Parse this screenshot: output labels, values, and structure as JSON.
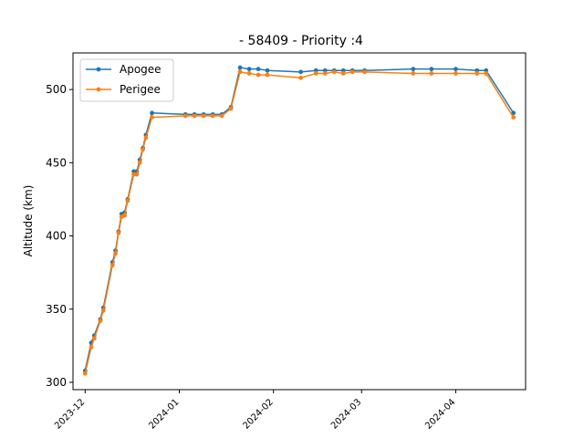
{
  "chart_data": {
    "type": "line",
    "title": "- 58409 - Priority :4",
    "xlabel": "",
    "ylabel": "Altitude (km)",
    "xlim": [
      "2023-11-27",
      "2024-04-24"
    ],
    "ylim": [
      295,
      525
    ],
    "xticks": [
      "2023-12",
      "2024-01",
      "2024-02",
      "2024-03",
      "2024-04"
    ],
    "xtick_dates": [
      "2023-12-01",
      "2024-01-01",
      "2024-02-01",
      "2024-03-01",
      "2024-04-01"
    ],
    "yticks": [
      300,
      350,
      400,
      450,
      500
    ],
    "grid": false,
    "legend_position": "top-left",
    "series": [
      {
        "name": "Apogee",
        "color": "#1f77b4",
        "points": [
          [
            "2023-12-01",
            308
          ],
          [
            "2023-12-03",
            327
          ],
          [
            "2023-12-04",
            332
          ],
          [
            "2023-12-06",
            343
          ],
          [
            "2023-12-07",
            351
          ],
          [
            "2023-12-10",
            382
          ],
          [
            "2023-12-11",
            390
          ],
          [
            "2023-12-12",
            403
          ],
          [
            "2023-12-13",
            415
          ],
          [
            "2023-12-14",
            416
          ],
          [
            "2023-12-15",
            425
          ],
          [
            "2023-12-17",
            444
          ],
          [
            "2023-12-18",
            444
          ],
          [
            "2023-12-19",
            452
          ],
          [
            "2023-12-20",
            460
          ],
          [
            "2023-12-21",
            469
          ],
          [
            "2023-12-23",
            484
          ],
          [
            "2024-01-03",
            483
          ],
          [
            "2024-01-06",
            483
          ],
          [
            "2024-01-09",
            483
          ],
          [
            "2024-01-12",
            483
          ],
          [
            "2024-01-15",
            483
          ],
          [
            "2024-01-18",
            488
          ],
          [
            "2024-01-21",
            515
          ],
          [
            "2024-01-24",
            514
          ],
          [
            "2024-01-27",
            514
          ],
          [
            "2024-01-30",
            513
          ],
          [
            "2024-02-10",
            512
          ],
          [
            "2024-02-15",
            513
          ],
          [
            "2024-02-18",
            513
          ],
          [
            "2024-02-21",
            513
          ],
          [
            "2024-02-24",
            513
          ],
          [
            "2024-02-27",
            513
          ],
          [
            "2024-03-02",
            513
          ],
          [
            "2024-03-18",
            514
          ],
          [
            "2024-03-24",
            514
          ],
          [
            "2024-04-01",
            514
          ],
          [
            "2024-04-08",
            513
          ],
          [
            "2024-04-11",
            513
          ],
          [
            "2024-04-20",
            484
          ]
        ]
      },
      {
        "name": "Perigee",
        "color": "#ff7f0e",
        "points": [
          [
            "2023-12-01",
            306
          ],
          [
            "2023-12-03",
            324
          ],
          [
            "2023-12-04",
            330
          ],
          [
            "2023-12-06",
            342
          ],
          [
            "2023-12-07",
            349
          ],
          [
            "2023-12-10",
            380
          ],
          [
            "2023-12-11",
            388
          ],
          [
            "2023-12-12",
            402
          ],
          [
            "2023-12-13",
            413
          ],
          [
            "2023-12-14",
            414
          ],
          [
            "2023-12-15",
            424
          ],
          [
            "2023-12-17",
            442
          ],
          [
            "2023-12-18",
            442
          ],
          [
            "2023-12-19",
            450
          ],
          [
            "2023-12-20",
            459
          ],
          [
            "2023-12-21",
            467
          ],
          [
            "2023-12-23",
            481
          ],
          [
            "2024-01-03",
            482
          ],
          [
            "2024-01-06",
            482
          ],
          [
            "2024-01-09",
            482
          ],
          [
            "2024-01-12",
            482
          ],
          [
            "2024-01-15",
            482
          ],
          [
            "2024-01-18",
            487
          ],
          [
            "2024-01-21",
            512
          ],
          [
            "2024-01-24",
            511
          ],
          [
            "2024-01-27",
            510
          ],
          [
            "2024-01-30",
            510
          ],
          [
            "2024-02-10",
            508
          ],
          [
            "2024-02-15",
            511
          ],
          [
            "2024-02-18",
            511
          ],
          [
            "2024-02-21",
            512
          ],
          [
            "2024-02-24",
            511
          ],
          [
            "2024-02-27",
            512
          ],
          [
            "2024-03-02",
            512
          ],
          [
            "2024-03-18",
            511
          ],
          [
            "2024-03-24",
            511
          ],
          [
            "2024-04-01",
            511
          ],
          [
            "2024-04-08",
            511
          ],
          [
            "2024-04-11",
            511
          ],
          [
            "2024-04-20",
            481
          ]
        ]
      }
    ]
  }
}
